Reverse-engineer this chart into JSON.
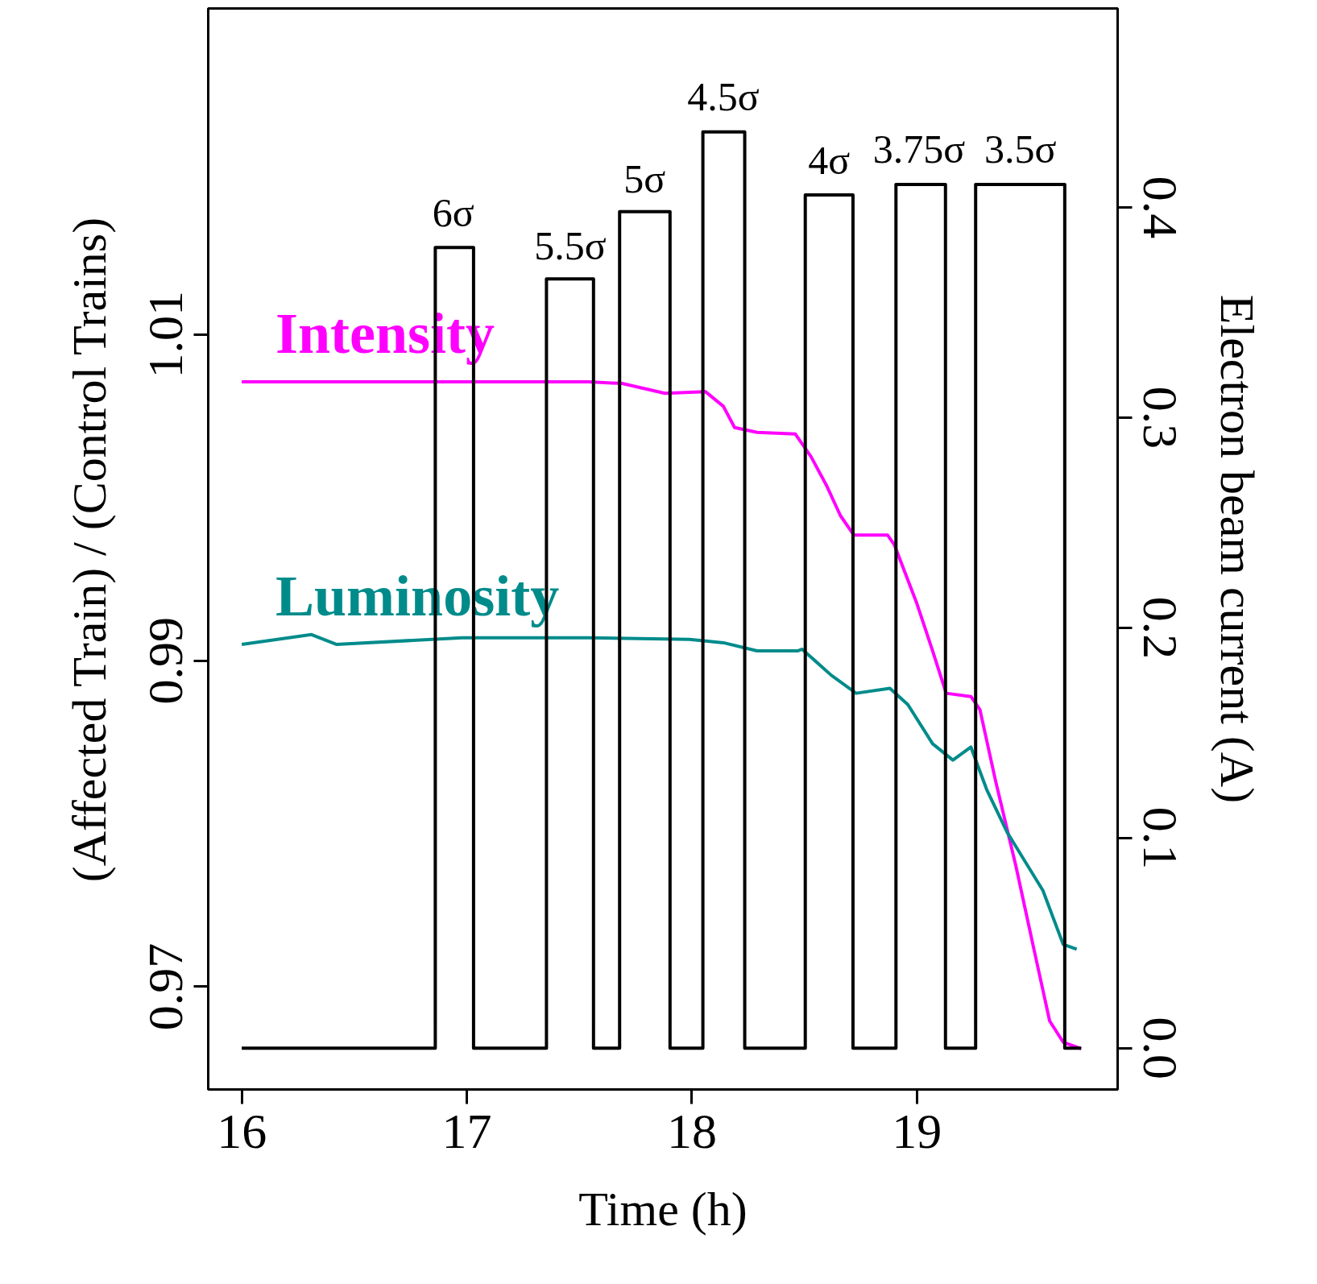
{
  "chart_data": {
    "type": "line",
    "xlabel": "Time (h)",
    "ylabel": "(Affected Train) / (Control Trains)",
    "y2label": "Electron beam current (A)",
    "xlim": [
      15.851,
      19.892
    ],
    "xticks": [
      16,
      17,
      18,
      19
    ],
    "ylim": [
      0.9637,
      1.03
    ],
    "yticks": [
      0.97,
      0.99,
      1.01
    ],
    "y2lim": [
      -0.0196,
      0.4947
    ],
    "y2ticks": [
      {
        "value": 0,
        "label": "0.0"
      },
      0.1,
      0.2,
      0.3,
      0.4
    ],
    "grid": false,
    "legend": false,
    "series": [
      {
        "name": "Intensity",
        "color": "#ff00ff",
        "x": [
          16.0,
          16.42,
          16.98,
          17.54,
          17.69,
          17.88,
          18.06,
          18.14,
          18.19,
          18.29,
          18.46,
          18.53,
          18.6,
          18.66,
          18.72,
          18.87,
          18.9,
          19.0,
          19.07,
          19.13,
          19.24,
          19.28,
          19.35,
          19.44,
          19.52,
          19.59,
          19.65,
          19.73
        ],
        "values": [
          1.0071,
          1.0071,
          1.0071,
          1.0071,
          1.007,
          1.0064,
          1.0065,
          1.0056,
          1.0043,
          1.004,
          1.0039,
          1.0025,
          1.0007,
          0.9989,
          0.9977,
          0.9977,
          0.9971,
          0.9935,
          0.9906,
          0.988,
          0.9878,
          0.987,
          0.9826,
          0.9774,
          0.9723,
          0.9679,
          0.9666,
          0.9662
        ]
      },
      {
        "name": "Luminosity",
        "color": "#008b8b",
        "x": [
          16.0,
          16.31,
          16.42,
          16.98,
          17.54,
          17.99,
          18.14,
          18.29,
          18.47,
          18.49,
          18.62,
          18.73,
          18.88,
          18.96,
          19.07,
          19.16,
          19.24,
          19.31,
          19.4,
          19.56,
          19.65,
          19.71
        ],
        "values": [
          0.991,
          0.9916,
          0.991,
          0.9914,
          0.9914,
          0.9913,
          0.9911,
          0.9906,
          0.9906,
          0.9907,
          0.9891,
          0.988,
          0.9883,
          0.9873,
          0.9849,
          0.9839,
          0.9847,
          0.9821,
          0.9795,
          0.9759,
          0.9726,
          0.9723
        ]
      },
      {
        "color": "#000000",
        "type": "step",
        "axis": "y2",
        "x": [
          16.0,
          16.86,
          17.03,
          17.354,
          17.563,
          17.679,
          17.903,
          18.049,
          18.235,
          18.504,
          18.716,
          18.907,
          19.127,
          19.261,
          19.657,
          19.73
        ],
        "values": [
          0,
          0.381,
          0,
          0.366,
          0,
          0.398,
          0,
          0.436,
          0,
          0.406,
          0,
          0.411,
          0,
          0.411,
          0,
          0
        ]
      }
    ],
    "annotations": [
      {
        "text": "6σ",
        "x": 16.94,
        "y": 1.0154
      },
      {
        "text": "5.5σ",
        "x": 17.46,
        "y": 1.0134
      },
      {
        "text": "5σ",
        "x": 17.79,
        "y": 1.0175
      },
      {
        "text": "4.5σ",
        "x": 18.14,
        "y": 1.0225
      },
      {
        "text": "4σ",
        "x": 18.61,
        "y": 1.0186
      },
      {
        "text": "3.75σ",
        "x": 19.01,
        "y": 1.0193
      },
      {
        "text": "3.5σ",
        "x": 19.46,
        "y": 1.0193
      }
    ]
  }
}
